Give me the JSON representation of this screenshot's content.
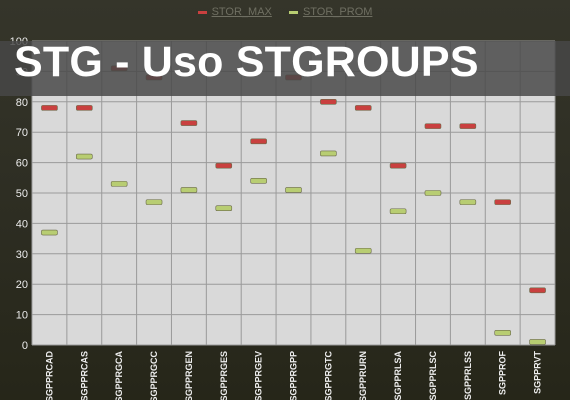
{
  "banner": {
    "title": "STG - Uso STGROUPS"
  },
  "colors": {
    "max": "#c9403f",
    "prom": "#b8cd72",
    "plot_bg": "#d9d9d9",
    "grid": "#9a9a9a",
    "axis_text": "#ededed",
    "legend_text": "#6f6f62"
  },
  "chart_data": {
    "type": "scatter",
    "title": "",
    "xlabel": "",
    "ylabel": "",
    "ylim": [
      0,
      100
    ],
    "yticks": [
      0,
      10,
      20,
      30,
      40,
      50,
      60,
      70,
      80,
      90,
      100
    ],
    "grid": true,
    "legend_position": "top-center",
    "categories": [
      "SGPPRCAD",
      "SGPPRCAS",
      "SGPPRGCA",
      "SGPPRGCC",
      "SGPPRGEN",
      "SGPPRGES",
      "SGPPRGEV",
      "SGPPRGPP",
      "SGPPRGTC",
      "SGPPRURN",
      "SGPPRLSA",
      "SGPPRLSC",
      "SGPPRLSS",
      "SGPPROF",
      "SGPPRVT"
    ],
    "series": [
      {
        "name": "STOR_MAX",
        "color": "#c9403f",
        "values": [
          78,
          78,
          91,
          88,
          73,
          59,
          67,
          88,
          80,
          78,
          59,
          72,
          72,
          47,
          18
        ]
      },
      {
        "name": "STOR_PROM",
        "color": "#b8cd72",
        "values": [
          37,
          62,
          53,
          47,
          51,
          45,
          54,
          51,
          63,
          31,
          44,
          50,
          47,
          4,
          1
        ]
      }
    ]
  }
}
